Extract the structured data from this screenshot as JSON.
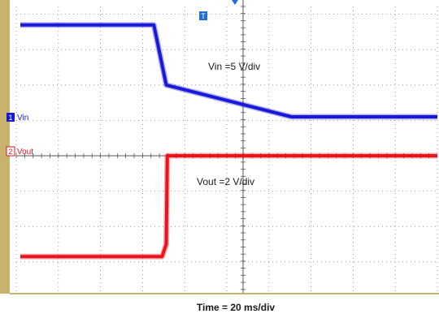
{
  "chart_data": {
    "type": "line",
    "title": "",
    "xlabel": "Time = 20 ms/div",
    "ylabel": "",
    "x_unit": "ms",
    "x_range": [
      0,
      200
    ],
    "grid": true,
    "grid_divisions": {
      "x": 10,
      "y": 8
    },
    "trigger_marker": "T",
    "series": [
      {
        "name": "Vin",
        "channel": "1",
        "color": "#1a1ad6",
        "scale_label": "Vin =5 V/div",
        "y_unit": "div",
        "x": [
          0,
          64,
          70,
          130,
          200
        ],
        "values": [
          3.7,
          3.7,
          2.0,
          1.1,
          1.1
        ]
      },
      {
        "name": "Vout",
        "channel": "2",
        "color": "#e8141e",
        "scale_label": "Vout =2 V/div",
        "y_unit": "div",
        "x": [
          0,
          68,
          70,
          70.5,
          200
        ],
        "values": [
          -2.85,
          -2.85,
          -2.5,
          0,
          0
        ]
      }
    ]
  },
  "colors": {
    "bezel": "#c8b36a",
    "grid": "#888888",
    "trigger": "#1f6fd6"
  }
}
